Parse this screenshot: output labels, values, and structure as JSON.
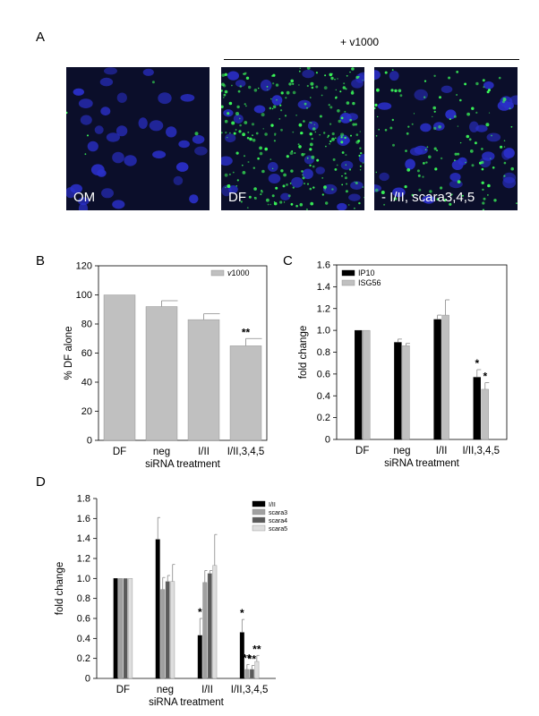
{
  "panels": {
    "A": "A",
    "B": "B",
    "C": "C",
    "D": "D"
  },
  "microscopy": {
    "treatment_label": "+ v1000",
    "images": [
      {
        "label": "OM",
        "green_level": 0.02
      },
      {
        "label": "DF",
        "green_level": 1.0
      },
      {
        "label": "- I/II, scara3,4,5",
        "green_level": 0.45
      }
    ]
  },
  "chart_data": [
    {
      "type": "bar",
      "panel": "B",
      "categories": [
        "DF",
        "neg",
        "I/II",
        "I/II,3,4,5"
      ],
      "xlabel": "siRNA treatment",
      "ylabel": "% DF alone",
      "ylim": [
        0,
        120
      ],
      "yticks": [
        0,
        20,
        40,
        60,
        80,
        100,
        120
      ],
      "legend": "top-right",
      "series": [
        {
          "name": "v1000",
          "color": "#c0c0c0",
          "values": [
            100,
            92,
            83,
            65
          ],
          "errors": [
            0,
            4,
            4,
            5
          ],
          "annotations": [
            "",
            "",
            "",
            "**"
          ]
        }
      ]
    },
    {
      "type": "bar",
      "panel": "C",
      "categories": [
        "DF",
        "neg",
        "I/II",
        "I/II,3,4,5"
      ],
      "xlabel": "siRNA treatment",
      "ylabel": "fold change",
      "ylim": [
        0,
        1.6
      ],
      "yticks": [
        "0",
        "0.2",
        "0.4",
        "0.6",
        "0.8",
        "1.0",
        "1.2",
        "1.4",
        "1.6"
      ],
      "legend": "top-left",
      "series": [
        {
          "name": "IP10",
          "color": "#000000",
          "values": [
            1.0,
            0.89,
            1.1,
            0.57
          ],
          "errors": [
            0,
            0.03,
            0.04,
            0.07
          ],
          "annotations": [
            "",
            "",
            "",
            "*"
          ]
        },
        {
          "name": "ISG56",
          "color": "#c0c0c0",
          "values": [
            1.0,
            0.86,
            1.14,
            0.46
          ],
          "errors": [
            0,
            0.02,
            0.14,
            0.06
          ],
          "annotations": [
            "",
            "",
            "",
            "*"
          ]
        }
      ]
    },
    {
      "type": "bar",
      "panel": "D",
      "categories": [
        "DF",
        "neg",
        "I/II",
        "I/II,3,4,5"
      ],
      "xlabel": "siRNA treatment",
      "ylabel": "fold change",
      "ylim": [
        0,
        1.8
      ],
      "yticks": [
        "0",
        "0.2",
        "0.4",
        "0.6",
        "0.8",
        "1.0",
        "1.2",
        "1.4",
        "1.6",
        "1.8"
      ],
      "legend": "top-right",
      "series": [
        {
          "name": "I/II",
          "color": "#000000",
          "values": [
            1.0,
            1.39,
            0.43,
            0.46
          ],
          "errors": [
            0,
            0.22,
            0.17,
            0.13
          ],
          "annotations": [
            "",
            "",
            "*",
            "*"
          ]
        },
        {
          "name": "scara3",
          "color": "#a0a0a0",
          "values": [
            1.0,
            0.89,
            0.96,
            0.09
          ],
          "errors": [
            0,
            0.12,
            0.12,
            0.05
          ],
          "annotations": [
            "",
            "",
            "",
            "**"
          ]
        },
        {
          "name": "scara4",
          "color": "#5a5a5a",
          "values": [
            1.0,
            0.97,
            1.05,
            0.09
          ],
          "errors": [
            0,
            0.06,
            0.03,
            0.04
          ],
          "annotations": [
            "",
            "",
            "",
            "**"
          ]
        },
        {
          "name": "scara5",
          "color": "#dedede",
          "values": [
            1.0,
            0.97,
            1.13,
            0.17
          ],
          "errors": [
            0,
            0.17,
            0.31,
            0.06
          ],
          "annotations": [
            "",
            "",
            "",
            "**"
          ]
        }
      ]
    }
  ]
}
